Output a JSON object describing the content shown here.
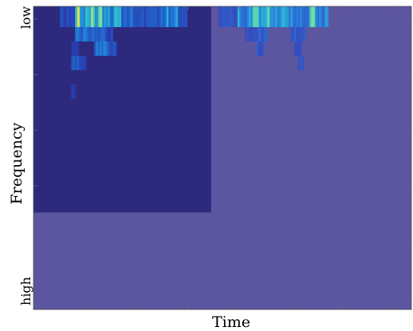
{
  "chart_data": {
    "type": "heatmap",
    "title": "",
    "xlabel": "Time",
    "ylabel": "Frequency",
    "y_tick_labels": [
      "low",
      "high"
    ],
    "x_tick_labels": [],
    "grid": false,
    "colormap": "parula",
    "colors": {
      "low_rect": "#2d2a7e",
      "background_fill": "#5c55a0",
      "accent_high": "#f2e33c"
    },
    "x_range": [
      0,
      1
    ],
    "y_range": [
      0,
      1
    ],
    "masked_region": {
      "x": [
        0,
        0.47
      ],
      "y": [
        0,
        0.68
      ]
    },
    "bands": [
      {
        "row": 0,
        "x": 0.07,
        "w": 0.04,
        "level": 0.25
      },
      {
        "row": 0,
        "x": 0.11,
        "w": 0.012,
        "level": 0.95
      },
      {
        "row": 0,
        "x": 0.122,
        "w": 0.02,
        "level": 0.55
      },
      {
        "row": 0,
        "x": 0.142,
        "w": 0.04,
        "level": 0.7
      },
      {
        "row": 0,
        "x": 0.182,
        "w": 0.03,
        "level": 0.5
      },
      {
        "row": 0,
        "x": 0.212,
        "w": 0.02,
        "level": 0.6
      },
      {
        "row": 0,
        "x": 0.232,
        "w": 0.04,
        "level": 0.4
      },
      {
        "row": 0,
        "x": 0.272,
        "w": 0.04,
        "level": 0.3
      },
      {
        "row": 0,
        "x": 0.312,
        "w": 0.04,
        "level": 0.35
      },
      {
        "row": 0,
        "x": 0.352,
        "w": 0.03,
        "level": 0.5
      },
      {
        "row": 0,
        "x": 0.382,
        "w": 0.025,
        "level": 0.25
      },
      {
        "row": 0,
        "x": 0.49,
        "w": 0.05,
        "level": 0.25
      },
      {
        "row": 0,
        "x": 0.54,
        "w": 0.04,
        "level": 0.5
      },
      {
        "row": 0,
        "x": 0.58,
        "w": 0.05,
        "level": 0.65
      },
      {
        "row": 0,
        "x": 0.63,
        "w": 0.04,
        "level": 0.55
      },
      {
        "row": 0,
        "x": 0.67,
        "w": 0.04,
        "level": 0.45
      },
      {
        "row": 0,
        "x": 0.71,
        "w": 0.02,
        "level": 0.4
      },
      {
        "row": 0,
        "x": 0.73,
        "w": 0.02,
        "level": 0.65
      },
      {
        "row": 0,
        "x": 0.75,
        "w": 0.03,
        "level": 0.45
      },
      {
        "row": 1,
        "x": 0.11,
        "w": 0.04,
        "level": 0.4
      },
      {
        "row": 1,
        "x": 0.15,
        "w": 0.04,
        "level": 0.35
      },
      {
        "row": 1,
        "x": 0.19,
        "w": 0.02,
        "level": 0.25
      },
      {
        "row": 1,
        "x": 0.56,
        "w": 0.03,
        "level": 0.25
      },
      {
        "row": 1,
        "x": 0.59,
        "w": 0.03,
        "level": 0.3
      },
      {
        "row": 1,
        "x": 0.68,
        "w": 0.02,
        "level": 0.3
      },
      {
        "row": 1,
        "x": 0.7,
        "w": 0.02,
        "level": 0.25
      },
      {
        "row": 2,
        "x": 0.1,
        "w": 0.02,
        "level": 0.25
      },
      {
        "row": 2,
        "x": 0.16,
        "w": 0.04,
        "level": 0.4
      },
      {
        "row": 2,
        "x": 0.2,
        "w": 0.02,
        "level": 0.3
      },
      {
        "row": 2,
        "x": 0.59,
        "w": 0.02,
        "level": 0.25
      },
      {
        "row": 2,
        "x": 0.69,
        "w": 0.02,
        "level": 0.2
      },
      {
        "row": 3,
        "x": 0.1,
        "w": 0.02,
        "level": 0.4
      },
      {
        "row": 3,
        "x": 0.12,
        "w": 0.02,
        "level": 0.25
      },
      {
        "row": 3,
        "x": 0.7,
        "w": 0.015,
        "level": 0.3
      },
      {
        "row": 5,
        "x": 0.1,
        "w": 0.012,
        "level": 0.2
      }
    ]
  }
}
